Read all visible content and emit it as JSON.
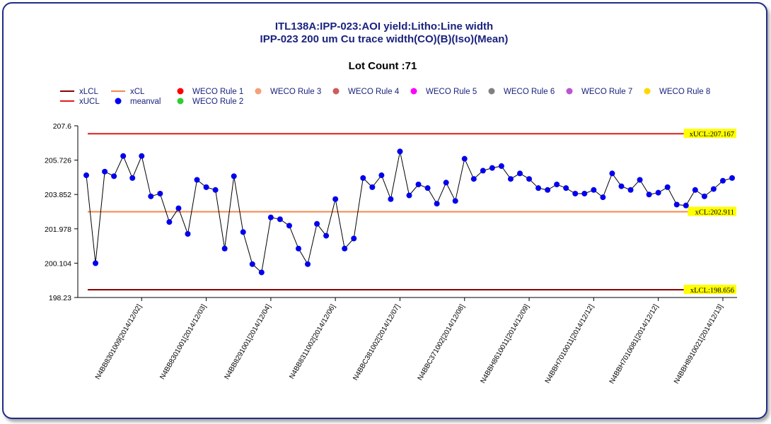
{
  "chart_data": {
    "type": "line",
    "title": "ITL138A:IPP-023:AOI yield:Litho:Line width",
    "subtitle": "IPP-023 200 um Cu trace width(CO)(B)(Iso)(Mean)",
    "lot_count_label": "Lot Count :71",
    "ylim": [
      198.23,
      207.6
    ],
    "y_ticks": [
      "207.6",
      "205.726",
      "203.852",
      "201.978",
      "200.104",
      "198.23"
    ],
    "x_tick_labels": [
      "N4BB8301009[2014/12/02]",
      "N4BB8301001[2014/12/03]",
      "N4BB8291001[2014/12/04]",
      "N4BB8311002[2014/12/06]",
      "N4BBC381002[2014/12/07]",
      "N4BBC371002[2014/12/08]",
      "N4BBH8610011[2014/12/09]",
      "N4BBH7010011[2014/12/12]",
      "N4BBH7010081[2014/12/12]",
      "N4BBH8910021[2014/12/13]"
    ],
    "x_tick_index": [
      6,
      13,
      20,
      27,
      34,
      41,
      48,
      55,
      62,
      69
    ],
    "legend": [
      {
        "name": "xLCL",
        "kind": "line",
        "color": "#8b0000"
      },
      {
        "name": "xUCL",
        "kind": "line",
        "color": "#e31a1c"
      },
      {
        "name": "xCL",
        "kind": "line",
        "color": "#f4874b"
      },
      {
        "name": "meanval",
        "kind": "dot",
        "color": "#0000ee"
      },
      {
        "name": "WECO Rule 1",
        "kind": "dot",
        "color": "#ff0000"
      },
      {
        "name": "WECO Rule 2",
        "kind": "dot",
        "color": "#32cd32"
      },
      {
        "name": "WECO Rule 3",
        "kind": "dot",
        "color": "#f4a07a"
      },
      {
        "name": "WECO Rule 4",
        "kind": "dot",
        "color": "#cd5c5c"
      },
      {
        "name": "WECO Rule 5",
        "kind": "dot",
        "color": "#ff00ff"
      },
      {
        "name": "WECO Rule 6",
        "kind": "dot",
        "color": "#808080"
      },
      {
        "name": "WECO Rule 7",
        "kind": "dot",
        "color": "#ba55d3"
      },
      {
        "name": "WECO Rule 8",
        "kind": "dot",
        "color": "#ffd700"
      }
    ],
    "limits": [
      {
        "name": "xUCL",
        "value": 207.167,
        "label": "xUCL:207.167",
        "color": "#e31a1c"
      },
      {
        "name": "xCL",
        "value": 202.911,
        "label": "xCL:202.911",
        "color": "#f4874b"
      },
      {
        "name": "xLCL",
        "value": 198.656,
        "label": "xLCL:198.656",
        "color": "#8b0000"
      }
    ],
    "series": [
      {
        "name": "meanval",
        "color": "#0000ee",
        "values": [
          204.9,
          200.1,
          205.1,
          204.85,
          205.95,
          204.75,
          205.95,
          203.75,
          203.9,
          202.35,
          203.1,
          201.7,
          204.65,
          204.25,
          204.1,
          200.9,
          204.85,
          201.8,
          200.05,
          199.6,
          202.6,
          202.5,
          202.15,
          200.9,
          200.05,
          202.25,
          201.6,
          203.6,
          200.9,
          201.45,
          204.75,
          204.25,
          204.9,
          203.6,
          206.2,
          203.8,
          204.4,
          204.2,
          203.35,
          204.5,
          203.5,
          205.8,
          204.7,
          205.15,
          205.3,
          205.4,
          204.7,
          205.0,
          204.7,
          204.2,
          204.1,
          204.4,
          204.2,
          203.9,
          203.9,
          204.1,
          203.7,
          205.0,
          204.3,
          204.1,
          204.65,
          203.85,
          203.95,
          204.25,
          203.3,
          203.25,
          204.1,
          203.75,
          204.15,
          204.6,
          204.75
        ]
      }
    ]
  }
}
